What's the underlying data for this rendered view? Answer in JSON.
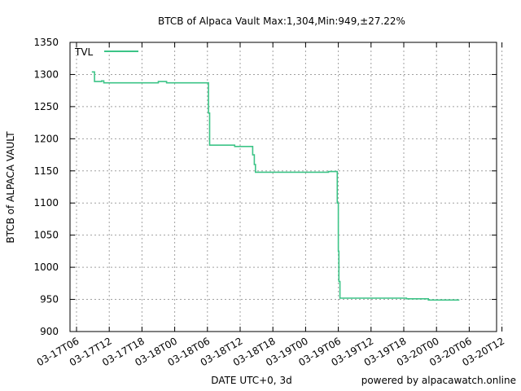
{
  "chart_data": {
    "type": "line",
    "title": "BTCB of Alpaca Vault Max:1,304,Min:949,±27.22%",
    "xlabel": "DATE UTC+0, 3d",
    "ylabel": "BTCB of ALPACA VAULT",
    "footer": "powered by alpacawatch.online",
    "grid": true,
    "legend_position": "top-left",
    "ylim": [
      900,
      1350
    ],
    "yticks": [
      900,
      950,
      1000,
      1050,
      1100,
      1150,
      1200,
      1250,
      1300,
      1350
    ],
    "xticks": [
      "03-17T06",
      "03-17T12",
      "03-17T18",
      "03-18T00",
      "03-18T06",
      "03-18T12",
      "03-18T18",
      "03-19T00",
      "03-19T06",
      "03-19T12",
      "03-19T18",
      "03-20T00",
      "03-20T06",
      "03-20T12"
    ],
    "x_unit_hours_from_first_tick": true,
    "series": [
      {
        "name": "TVL",
        "color": "#3cc487",
        "step": true,
        "points": [
          [
            2.8,
            1304
          ],
          [
            3.3,
            1304
          ],
          [
            3.3,
            1289
          ],
          [
            4.6,
            1289
          ],
          [
            4.6,
            1290
          ],
          [
            5.0,
            1290
          ],
          [
            5.0,
            1287
          ],
          [
            15.0,
            1287
          ],
          [
            15.0,
            1289
          ],
          [
            16.5,
            1289
          ],
          [
            16.5,
            1287
          ],
          [
            24.2,
            1287
          ],
          [
            24.2,
            1240
          ],
          [
            24.4,
            1240
          ],
          [
            24.4,
            1190
          ],
          [
            29.0,
            1190
          ],
          [
            29.0,
            1188
          ],
          [
            32.3,
            1188
          ],
          [
            32.3,
            1175
          ],
          [
            32.6,
            1175
          ],
          [
            32.6,
            1160
          ],
          [
            32.8,
            1160
          ],
          [
            32.8,
            1148
          ],
          [
            46.2,
            1148
          ],
          [
            46.2,
            1149
          ],
          [
            47.8,
            1149
          ],
          [
            47.8,
            1100
          ],
          [
            48.0,
            1100
          ],
          [
            48.0,
            1025
          ],
          [
            48.1,
            1025
          ],
          [
            48.1,
            978
          ],
          [
            48.3,
            978
          ],
          [
            48.3,
            952
          ],
          [
            60.5,
            952
          ],
          [
            60.5,
            951
          ],
          [
            64.5,
            951
          ],
          [
            64.5,
            949
          ],
          [
            70.2,
            949
          ]
        ]
      }
    ]
  }
}
